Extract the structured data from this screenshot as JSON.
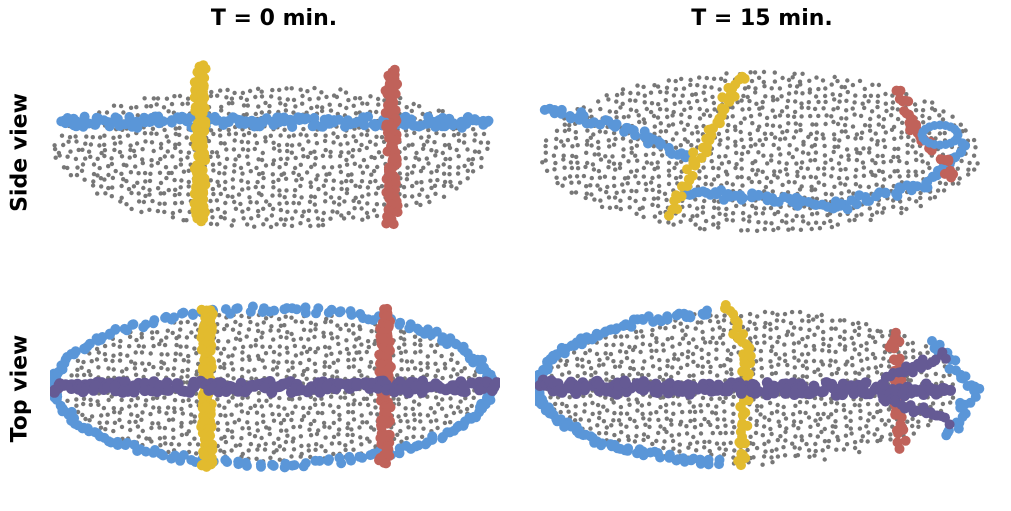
{
  "columns": {
    "t0": "T = 0 min.",
    "t15": "T = 15 min."
  },
  "rows": {
    "side": "Side view",
    "top": "Top view"
  },
  "colors": {
    "background_cells": "#777777",
    "blue": "#5a96d8",
    "yellow": "#e2bb2e",
    "red": "#c0625a",
    "purple": "#655a94"
  }
}
